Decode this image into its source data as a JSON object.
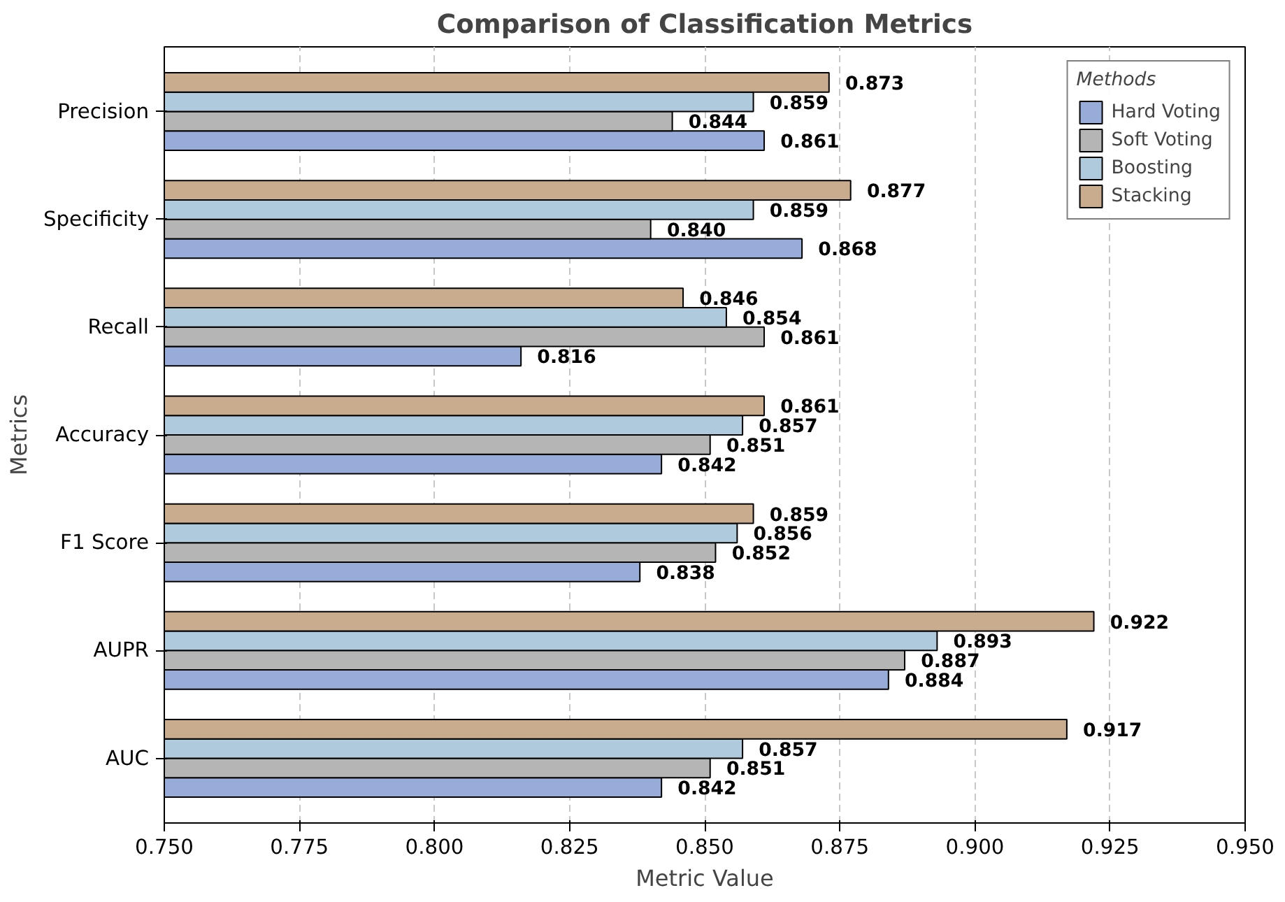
{
  "chart_data": {
    "type": "bar",
    "orientation": "horizontal",
    "title": "Comparison of Classification Metrics",
    "xlabel": "Metric Value",
    "ylabel": "Metrics",
    "legend_title": "Methods",
    "legend": "top right",
    "grid": "x",
    "xlim": [
      0.75,
      0.95
    ],
    "xticks": [
      {
        "value": 0.75,
        "label": "0.750"
      },
      {
        "value": 0.775,
        "label": "0.775"
      },
      {
        "value": 0.8,
        "label": "0.800"
      },
      {
        "value": 0.825,
        "label": "0.825"
      },
      {
        "value": 0.85,
        "label": "0.850"
      },
      {
        "value": 0.875,
        "label": "0.875"
      },
      {
        "value": 0.9,
        "label": "0.900"
      },
      {
        "value": 0.925,
        "label": "0.925"
      },
      {
        "value": 0.95,
        "label": "0.950"
      }
    ],
    "categories": [
      "Precision",
      "Specificity",
      "Recall",
      "Accuracy",
      "F1 Score",
      "AUPR",
      "AUC"
    ],
    "series": [
      {
        "name": "Hard Voting",
        "color": "#97acd9",
        "values": [
          0.861,
          0.868,
          0.816,
          0.842,
          0.838,
          0.884,
          0.842
        ],
        "value_labels": [
          "0.861",
          "0.868",
          "0.816",
          "0.842",
          "0.838",
          "0.884",
          "0.842"
        ]
      },
      {
        "name": "Soft Voting",
        "color": "#b5b5b5",
        "values": [
          0.844,
          0.84,
          0.861,
          0.851,
          0.852,
          0.887,
          0.851
        ],
        "value_labels": [
          "0.844",
          "0.840",
          "0.861",
          "0.851",
          "0.852",
          "0.887",
          "0.851"
        ]
      },
      {
        "name": "Boosting",
        "color": "#afc9dd",
        "values": [
          0.859,
          0.859,
          0.854,
          0.857,
          0.856,
          0.893,
          0.857
        ],
        "value_labels": [
          "0.859",
          "0.859",
          "0.854",
          "0.857",
          "0.856",
          "0.893",
          "0.857"
        ]
      },
      {
        "name": "Stacking",
        "color": "#c9ab8d",
        "values": [
          0.873,
          0.877,
          0.846,
          0.861,
          0.859,
          0.922,
          0.917
        ],
        "value_labels": [
          "0.873",
          "0.877",
          "0.846",
          "0.861",
          "0.859",
          "0.922",
          "0.917"
        ]
      }
    ]
  }
}
